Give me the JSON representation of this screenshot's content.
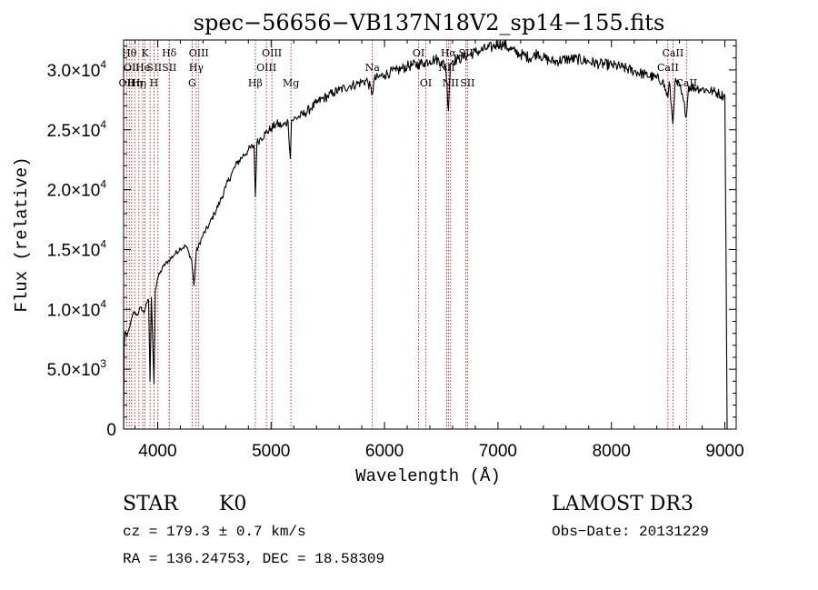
{
  "chart_data": {
    "type": "line",
    "title": "spec−56656−VB137N18V2_sp14−155.fits",
    "xlabel": "Wavelength (Å)",
    "ylabel": "Flux (relative)",
    "xlim": [
      3700,
      9100
    ],
    "ylim": [
      0,
      32500
    ],
    "x_ticks": [
      {
        "value": 4000,
        "label": "4000"
      },
      {
        "value": 5000,
        "label": "5000"
      },
      {
        "value": 6000,
        "label": "6000"
      },
      {
        "value": 7000,
        "label": "7000"
      },
      {
        "value": 8000,
        "label": "8000"
      },
      {
        "value": 9000,
        "label": "9000"
      }
    ],
    "y_ticks": [
      {
        "value": 0,
        "mantissa": "0",
        "exponent": ""
      },
      {
        "value": 5000,
        "mantissa": "5.0×10",
        "exponent": "3"
      },
      {
        "value": 10000,
        "mantissa": "1.0×10",
        "exponent": "4"
      },
      {
        "value": 15000,
        "mantissa": "1.5×10",
        "exponent": "4"
      },
      {
        "value": 20000,
        "mantissa": "2.0×10",
        "exponent": "4"
      },
      {
        "value": 25000,
        "mantissa": "2.5×10",
        "exponent": "4"
      },
      {
        "value": 30000,
        "mantissa": "3.0×10",
        "exponent": "4"
      }
    ],
    "series": [
      {
        "name": "flux",
        "points": [
          [
            3700,
            0
          ],
          [
            3705,
            7000
          ],
          [
            3715,
            8200
          ],
          [
            3730,
            7700
          ],
          [
            3760,
            8800
          ],
          [
            3790,
            9800
          ],
          [
            3820,
            9500
          ],
          [
            3850,
            10200
          ],
          [
            3880,
            9700
          ],
          [
            3900,
            10500
          ],
          [
            3920,
            10800
          ],
          [
            3933,
            4000
          ],
          [
            3945,
            11000
          ],
          [
            3968,
            3800
          ],
          [
            3980,
            11600
          ],
          [
            4000,
            12600
          ],
          [
            4050,
            13600
          ],
          [
            4100,
            14100
          ],
          [
            4150,
            14600
          ],
          [
            4200,
            15100
          ],
          [
            4250,
            15300
          ],
          [
            4300,
            14100
          ],
          [
            4320,
            12000
          ],
          [
            4340,
            14800
          ],
          [
            4400,
            16200
          ],
          [
            4450,
            17000
          ],
          [
            4500,
            18000
          ],
          [
            4550,
            19000
          ],
          [
            4600,
            20200
          ],
          [
            4650,
            21300
          ],
          [
            4700,
            22200
          ],
          [
            4750,
            22800
          ],
          [
            4800,
            23300
          ],
          [
            4850,
            23700
          ],
          [
            4861,
            19400
          ],
          [
            4875,
            23900
          ],
          [
            4900,
            24200
          ],
          [
            4950,
            24700
          ],
          [
            5000,
            25100
          ],
          [
            5050,
            25500
          ],
          [
            5100,
            25300
          ],
          [
            5150,
            25700
          ],
          [
            5170,
            22600
          ],
          [
            5180,
            25800
          ],
          [
            5200,
            25900
          ],
          [
            5250,
            26100
          ],
          [
            5300,
            26400
          ],
          [
            5350,
            26800
          ],
          [
            5400,
            27200
          ],
          [
            5450,
            27600
          ],
          [
            5500,
            27800
          ],
          [
            5550,
            28100
          ],
          [
            5600,
            28300
          ],
          [
            5650,
            28500
          ],
          [
            5700,
            28700
          ],
          [
            5750,
            28800
          ],
          [
            5800,
            29000
          ],
          [
            5850,
            29100
          ],
          [
            5893,
            28000
          ],
          [
            5910,
            29200
          ],
          [
            5950,
            29400
          ],
          [
            6000,
            29600
          ],
          [
            6050,
            29800
          ],
          [
            6100,
            29900
          ],
          [
            6150,
            30100
          ],
          [
            6200,
            30300
          ],
          [
            6250,
            30400
          ],
          [
            6300,
            30500
          ],
          [
            6350,
            30600
          ],
          [
            6400,
            30800
          ],
          [
            6450,
            30900
          ],
          [
            6500,
            30700
          ],
          [
            6540,
            30300
          ],
          [
            6563,
            26600
          ],
          [
            6580,
            30500
          ],
          [
            6600,
            30800
          ],
          [
            6650,
            30900
          ],
          [
            6700,
            31100
          ],
          [
            6750,
            31300
          ],
          [
            6800,
            31500
          ],
          [
            6850,
            31600
          ],
          [
            6900,
            31800
          ],
          [
            6950,
            31900
          ],
          [
            7000,
            32200
          ],
          [
            7050,
            32100
          ],
          [
            7100,
            31800
          ],
          [
            7150,
            31500
          ],
          [
            7200,
            31300
          ],
          [
            7300,
            31000
          ],
          [
            7350,
            31500
          ],
          [
            7400,
            31000
          ],
          [
            7450,
            30800
          ],
          [
            7500,
            30700
          ],
          [
            7600,
            30900
          ],
          [
            7700,
            30900
          ],
          [
            7800,
            30700
          ],
          [
            7900,
            30500
          ],
          [
            8000,
            30400
          ],
          [
            8100,
            30200
          ],
          [
            8200,
            29900
          ],
          [
            8300,
            29600
          ],
          [
            8400,
            29300
          ],
          [
            8450,
            29100
          ],
          [
            8498,
            27700
          ],
          [
            8510,
            29000
          ],
          [
            8542,
            25500
          ],
          [
            8560,
            28900
          ],
          [
            8600,
            28700
          ],
          [
            8662,
            26200
          ],
          [
            8680,
            28600
          ],
          [
            8750,
            28500
          ],
          [
            8800,
            28400
          ],
          [
            8850,
            28300
          ],
          [
            8900,
            28200
          ],
          [
            8950,
            28000
          ],
          [
            9000,
            27800
          ],
          [
            9010,
            15000
          ],
          [
            9020,
            0
          ]
        ]
      }
    ],
    "lines": [
      {
        "wave": 3727,
        "label": "OII",
        "row": 3
      },
      {
        "wave": 3750,
        "label": "Hθ",
        "row": 1
      },
      {
        "wave": 3771,
        "label": "OII",
        "row": 2
      },
      {
        "wave": 3798,
        "label": "Hη",
        "row": 3
      },
      {
        "wave": 3835,
        "label": "Hη",
        "row": 3
      },
      {
        "wave": 3869,
        "label": "He",
        "row": 2
      },
      {
        "wave": 3889,
        "label": "K",
        "row": 1
      },
      {
        "wave": 3933,
        "label": "S",
        "row": 2
      },
      {
        "wave": 3968,
        "label": "H",
        "row": 3
      },
      {
        "wave": 4003,
        "label": "II",
        "row": 2
      },
      {
        "wave": 4102,
        "label": "Hδ",
        "row": 1
      },
      {
        "wave": 4103,
        "label": "SII",
        "row": 2
      },
      {
        "wave": 4304,
        "label": "G",
        "row": 3
      },
      {
        "wave": 4340,
        "label": "Hγ",
        "row": 2
      },
      {
        "wave": 4363,
        "label": "OIII",
        "row": 1
      },
      {
        "wave": 4861,
        "label": "Hβ",
        "row": 3
      },
      {
        "wave": 4959,
        "label": "OIII",
        "row": 2
      },
      {
        "wave": 5007,
        "label": "OIII",
        "row": 1
      },
      {
        "wave": 5175,
        "label": "Mg",
        "row": 3
      },
      {
        "wave": 5893,
        "label": "Na",
        "row": 2
      },
      {
        "wave": 6300,
        "label": "OI",
        "row": 1
      },
      {
        "wave": 6364,
        "label": "OI",
        "row": 3
      },
      {
        "wave": 6548,
        "label": "NII",
        "row": 2
      },
      {
        "wave": 6563,
        "label": "Hα",
        "row": 1
      },
      {
        "wave": 6583,
        "label": "NII",
        "row": 3
      },
      {
        "wave": 6717,
        "label": "SII",
        "row": 1
      },
      {
        "wave": 6731,
        "label": "SII",
        "row": 3
      },
      {
        "wave": 8498,
        "label": "CaII",
        "row": 2
      },
      {
        "wave": 8542,
        "label": "CaII",
        "row": 1
      },
      {
        "wave": 8662,
        "label": "CaII",
        "row": 3
      }
    ]
  },
  "info": {
    "class_text": "STAR",
    "subclass_text": "K0",
    "survey": "LAMOST DR3",
    "cz": "cz = 179.3 ± 0.7 km/s",
    "obs_date": "Obs−Date: 20131229",
    "coords": "RA = 136.24753, DEC =  18.58309"
  }
}
